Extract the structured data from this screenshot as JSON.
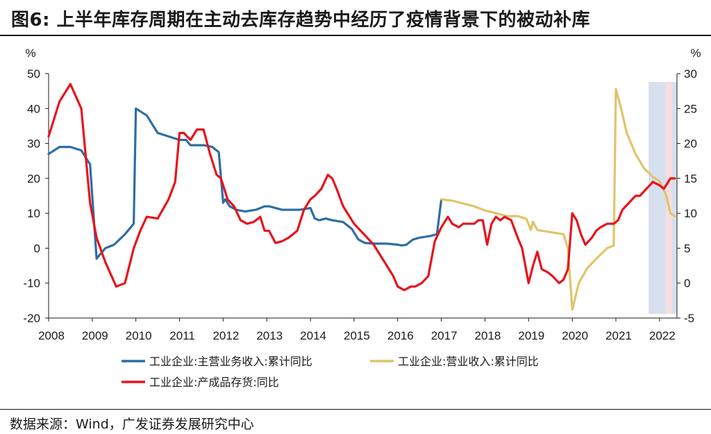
{
  "figure": {
    "title": "图6:  上半年库存周期在主动去库存趋势中经历了疫情背景下的被动补库",
    "source": "数据来源：Wind，广发证券发展研究中心"
  },
  "colors": {
    "blue": "#2e6da4",
    "yellow": "#e0c46a",
    "red": "#e8131b",
    "band_blue": "#c9d6ea",
    "band_pink": "#f6d3d1",
    "axis": "#1a1a1a"
  },
  "chart_data": {
    "type": "line",
    "xlim": [
      2008,
      2022.4
    ],
    "x_ticks": [
      "2008",
      "2009",
      "2010",
      "2011",
      "2012",
      "2013",
      "2014",
      "2015",
      "2016",
      "2017",
      "2018",
      "2019",
      "2020",
      "2021",
      "2022"
    ],
    "left_axis": {
      "label": "%",
      "ylim": [
        -20,
        50
      ],
      "ticks": [
        "50",
        "40",
        "30",
        "20",
        "10",
        "0",
        "-10",
        "-20"
      ]
    },
    "right_axis": {
      "label": "%",
      "ylim": [
        -5,
        30
      ],
      "ticks": [
        "30",
        "25",
        "20",
        "15",
        "10",
        "5",
        "0",
        "-5"
      ]
    },
    "highlight_bands": [
      {
        "from": 2021.75,
        "to": 2022.15,
        "type": "blue"
      },
      {
        "from": 2022.15,
        "to": 2022.28,
        "type": "pink"
      },
      {
        "from": 2022.28,
        "to": 2022.4,
        "type": "blue"
      }
    ],
    "series": [
      {
        "name": "工业企业:主营业务收入:累计同比",
        "axis": "left",
        "color_key": "blue",
        "x": [
          2008.0,
          2008.25,
          2008.5,
          2008.75,
          2008.95,
          2009.1,
          2009.3,
          2009.5,
          2009.75,
          2009.95,
          2010.0,
          2010.25,
          2010.5,
          2010.75,
          2011.0,
          2011.15,
          2011.25,
          2011.4,
          2011.55,
          2011.75,
          2011.9,
          2012.0,
          2012.05,
          2012.15,
          2012.3,
          2012.5,
          2012.75,
          2012.95,
          2013.05,
          2013.2,
          2013.35,
          2013.5,
          2013.75,
          2014.0,
          2014.1,
          2014.2,
          2014.35,
          2014.5,
          2014.75,
          2014.95,
          2015.1,
          2015.25,
          2015.5,
          2015.75,
          2016.0,
          2016.1,
          2016.2,
          2016.35,
          2016.5,
          2016.75,
          2016.9,
          2017.0
        ],
        "values": [
          27,
          29,
          29,
          28,
          24,
          -3,
          0,
          1,
          4,
          7,
          40,
          38,
          33,
          32,
          31,
          31,
          29.5,
          29.5,
          29.5,
          29,
          27.5,
          13,
          14,
          12,
          11,
          10.5,
          11,
          12,
          12,
          11.5,
          11,
          11,
          11,
          11.5,
          8.5,
          8,
          8.5,
          8,
          7.5,
          5.5,
          2.5,
          1.5,
          1.3,
          1.3,
          1,
          0.8,
          1,
          2.5,
          3,
          3.5,
          4,
          14
        ]
      },
      {
        "name": "工业企业:营业收入:累计同比",
        "axis": "right",
        "color_key": "yellow",
        "x": [
          2017.0,
          2017.25,
          2017.5,
          2017.75,
          2018.0,
          2018.25,
          2018.5,
          2018.75,
          2018.95,
          2019.05,
          2019.1,
          2019.2,
          2019.4,
          2019.6,
          2019.8,
          2019.9,
          2020.0,
          2020.15,
          2020.35,
          2020.6,
          2020.8,
          2020.95,
          2021.0,
          2021.1,
          2021.25,
          2021.45,
          2021.65,
          2021.85,
          2022.0,
          2022.15,
          2022.25,
          2022.35
        ],
        "values": [
          12,
          11.8,
          11.4,
          11,
          10.4,
          10,
          9.6,
          9.6,
          9.2,
          7.6,
          8.8,
          7.6,
          7.4,
          7.2,
          7,
          5,
          -3.8,
          0,
          2.2,
          3.8,
          5,
          5.4,
          27.8,
          25.5,
          21.5,
          18.5,
          16.4,
          15.2,
          14.6,
          12.6,
          10,
          9.6
        ]
      },
      {
        "name": "工业企业:产成品存货:同比",
        "axis": "left",
        "color_key": "red",
        "x": [
          2008.0,
          2008.25,
          2008.5,
          2008.75,
          2008.95,
          2009.1,
          2009.3,
          2009.55,
          2009.75,
          2009.95,
          2010.1,
          2010.25,
          2010.5,
          2010.75,
          2010.9,
          2011.0,
          2011.1,
          2011.25,
          2011.4,
          2011.55,
          2011.7,
          2011.85,
          2011.95,
          2012.1,
          2012.25,
          2012.4,
          2012.55,
          2012.7,
          2012.85,
          2012.95,
          2013.05,
          2013.2,
          2013.35,
          2013.5,
          2013.7,
          2013.85,
          2014.0,
          2014.1,
          2014.25,
          2014.4,
          2014.5,
          2014.6,
          2014.75,
          2014.85,
          2015.0,
          2015.15,
          2015.3,
          2015.45,
          2015.6,
          2015.75,
          2015.9,
          2016.0,
          2016.15,
          2016.3,
          2016.4,
          2016.55,
          2016.7,
          2016.85,
          2017.0,
          2017.15,
          2017.25,
          2017.4,
          2017.5,
          2017.6,
          2017.75,
          2017.85,
          2017.95,
          2018.05,
          2018.15,
          2018.25,
          2018.35,
          2018.45,
          2018.6,
          2018.75,
          2018.85,
          2019.0,
          2019.1,
          2019.2,
          2019.3,
          2019.45,
          2019.55,
          2019.7,
          2019.8,
          2019.9,
          2020.0,
          2020.1,
          2020.2,
          2020.3,
          2020.45,
          2020.55,
          2020.65,
          2020.8,
          2020.95,
          2021.05,
          2021.15,
          2021.3,
          2021.45,
          2021.55,
          2021.7,
          2021.85,
          2022.0,
          2022.1,
          2022.25,
          2022.35
        ],
        "values": [
          32,
          42,
          47,
          40,
          13,
          3,
          -4,
          -11,
          -10,
          0,
          5,
          9,
          8.5,
          14,
          19,
          33,
          33,
          31,
          34,
          34,
          27,
          21,
          20,
          14,
          12,
          8,
          7,
          7.5,
          9,
          5,
          5,
          1.5,
          2,
          3,
          5,
          11,
          14,
          15,
          17,
          21,
          20,
          17,
          12,
          10,
          7,
          5,
          3,
          1,
          -2,
          -5,
          -8,
          -11,
          -12,
          -11,
          -11,
          -10,
          -8,
          2,
          6,
          9,
          7,
          6,
          7,
          7,
          7,
          8,
          8,
          1,
          7,
          9,
          8,
          9,
          8,
          3,
          0,
          -10,
          -5,
          -1,
          -6,
          -7,
          -8,
          -10,
          -9,
          -6,
          10,
          8,
          4,
          1,
          3,
          5,
          6,
          7,
          7,
          8,
          11,
          13,
          15,
          15,
          17,
          19,
          18,
          17,
          20,
          20
        ]
      }
    ]
  }
}
